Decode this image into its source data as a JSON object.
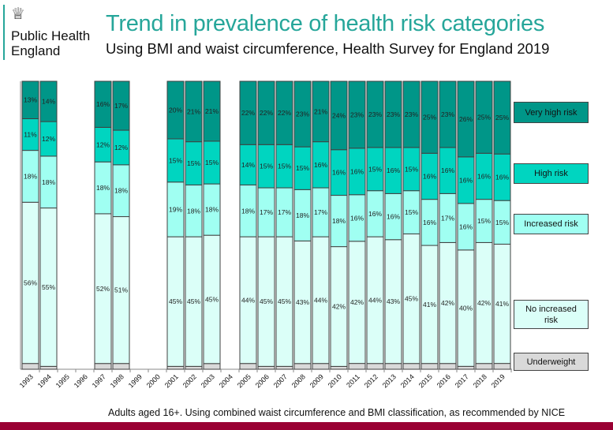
{
  "logo": {
    "text_line1": "Public Health",
    "text_line2": "England"
  },
  "header": {
    "title": "Trend in prevalence of health risk categories",
    "subtitle": "Using BMI and waist circumference, Health Survey for England 2019"
  },
  "footnote": "Adults aged 16+. Using combined waist circumference and BMI classification, as recommended by NICE",
  "chart_data": {
    "type": "bar",
    "stacked": true,
    "categories": [
      "1993",
      "1994",
      "1995",
      "1996",
      "1997",
      "1998",
      "1999",
      "2000",
      "2001",
      "2002",
      "2003",
      "2004",
      "2005",
      "2006",
      "2007",
      "2008",
      "2009",
      "2010",
      "2011",
      "2012",
      "2013",
      "2014",
      "2015",
      "2016",
      "2017",
      "2018",
      "2019"
    ],
    "ylim": [
      0,
      100
    ],
    "grid": false,
    "legend_placement": "right",
    "series": [
      {
        "name": "Underweight",
        "color": "#d9d9d9",
        "estimated": true,
        "labels_shown": false,
        "values": [
          2,
          1,
          null,
          null,
          2,
          2,
          null,
          null,
          1,
          1,
          2,
          null,
          2,
          1,
          1,
          2,
          2,
          1,
          2,
          2,
          2,
          2,
          2,
          2,
          1,
          2,
          2
        ]
      },
      {
        "name": "No increased risk",
        "color": "#dbfff8",
        "values": [
          56,
          55,
          null,
          null,
          52,
          51,
          null,
          null,
          45,
          45,
          45,
          null,
          44,
          45,
          45,
          43,
          44,
          42,
          42,
          44,
          43,
          45,
          41,
          42,
          40,
          42,
          41
        ]
      },
      {
        "name": "Increased risk",
        "color": "#a0fff2",
        "values": [
          18,
          18,
          null,
          null,
          18,
          18,
          null,
          null,
          19,
          18,
          18,
          null,
          18,
          17,
          17,
          18,
          17,
          18,
          16,
          16,
          16,
          15,
          16,
          17,
          16,
          15,
          15
        ]
      },
      {
        "name": "High risk",
        "color": "#00d5c0",
        "values": [
          11,
          12,
          null,
          null,
          12,
          12,
          null,
          null,
          15,
          15,
          15,
          null,
          14,
          15,
          15,
          15,
          16,
          16,
          16,
          15,
          16,
          15,
          16,
          16,
          16,
          16,
          16
        ]
      },
      {
        "name": "Very high risk",
        "color": "#009688",
        "values": [
          13,
          14,
          null,
          null,
          16,
          17,
          null,
          null,
          20,
          21,
          21,
          null,
          22,
          22,
          22,
          23,
          21,
          24,
          23,
          23,
          23,
          23,
          25,
          23,
          26,
          25,
          25
        ]
      }
    ]
  }
}
